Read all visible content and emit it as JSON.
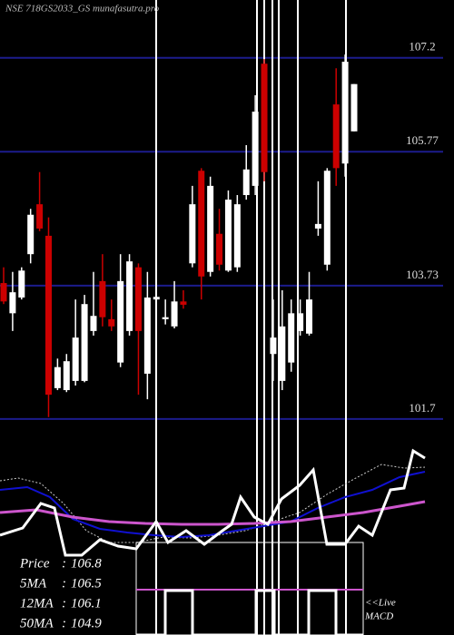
{
  "chart_data": {
    "type": "candlestick",
    "title": "NSE 718GS2033_GS munafasutra.pro",
    "ylim": [
      101.45,
      108.08
    ],
    "yticks": [
      107.2,
      105.77,
      103.73,
      101.7
    ],
    "grid": true,
    "grid_color": "#1c1c8c",
    "up_color": "#ffffff",
    "down_color": "#cc0000",
    "open": [
      103.77,
      103.31,
      103.55,
      104.21,
      104.97,
      104.49,
      102.17,
      102.14,
      102.28,
      102.28,
      103.04,
      103.8,
      103.22,
      102.56,
      103.04,
      104.01,
      102.39,
      103.52,
      103.22,
      103.11,
      103.49,
      104.07,
      105.48,
      103.94,
      104.52,
      103.96,
      104.01,
      105.11,
      105.25,
      107.11,
      102.69,
      102.28,
      102.56,
      103.04,
      103.0,
      104.6,
      104.05,
      106.49,
      105.59,
      106.08
    ],
    "high": [
      104.01,
      103.94,
      104.01,
      104.9,
      105.46,
      104.77,
      102.62,
      102.69,
      103.52,
      103.59,
      103.94,
      104.21,
      103.52,
      104.21,
      104.21,
      104.07,
      103.94,
      103.8,
      103.52,
      103.8,
      103.66,
      105.25,
      105.52,
      105.39,
      104.9,
      105.18,
      105.11,
      105.87,
      106.63,
      107.18,
      103.52,
      103.66,
      103.52,
      103.52,
      103.94,
      105.32,
      105.52,
      107.04,
      107.25,
      106.8
    ],
    "low": [
      103.45,
      103.04,
      103.52,
      104.07,
      104.56,
      101.73,
      102.14,
      102.11,
      102.21,
      102.26,
      102.97,
      103.11,
      103.04,
      102.49,
      102.97,
      102.07,
      102.0,
      103.31,
      103.14,
      103.08,
      103.38,
      104.01,
      103.52,
      103.87,
      103.96,
      103.94,
      103.94,
      105.04,
      105.11,
      105.32,
      102.28,
      102.14,
      102.42,
      102.97,
      102.97,
      104.49,
      103.96,
      105.25,
      105.39,
      106.08
    ],
    "close": [
      103.49,
      103.63,
      103.96,
      104.81,
      104.6,
      102.07,
      102.49,
      102.58,
      102.94,
      103.45,
      103.27,
      103.25,
      103.11,
      103.8,
      104.1,
      103.04,
      103.55,
      103.56,
      103.25,
      103.49,
      103.44,
      104.97,
      103.87,
      105.25,
      104.05,
      105.04,
      104.97,
      105.5,
      106.38,
      105.46,
      102.94,
      103.11,
      103.31,
      103.31,
      103.52,
      104.67,
      105.48,
      105.52,
      107.14,
      106.8
    ],
    "stats": [
      {
        "label": "Price",
        "value": 106.8
      },
      {
        "label": "5MA",
        "value": 106.5
      },
      {
        "label": "12MA",
        "value": 106.1
      },
      {
        "label": "50MA",
        "value": 104.9
      }
    ],
    "stat_separator": ":",
    "macd_label": [
      "<<Live",
      "MACD"
    ]
  }
}
